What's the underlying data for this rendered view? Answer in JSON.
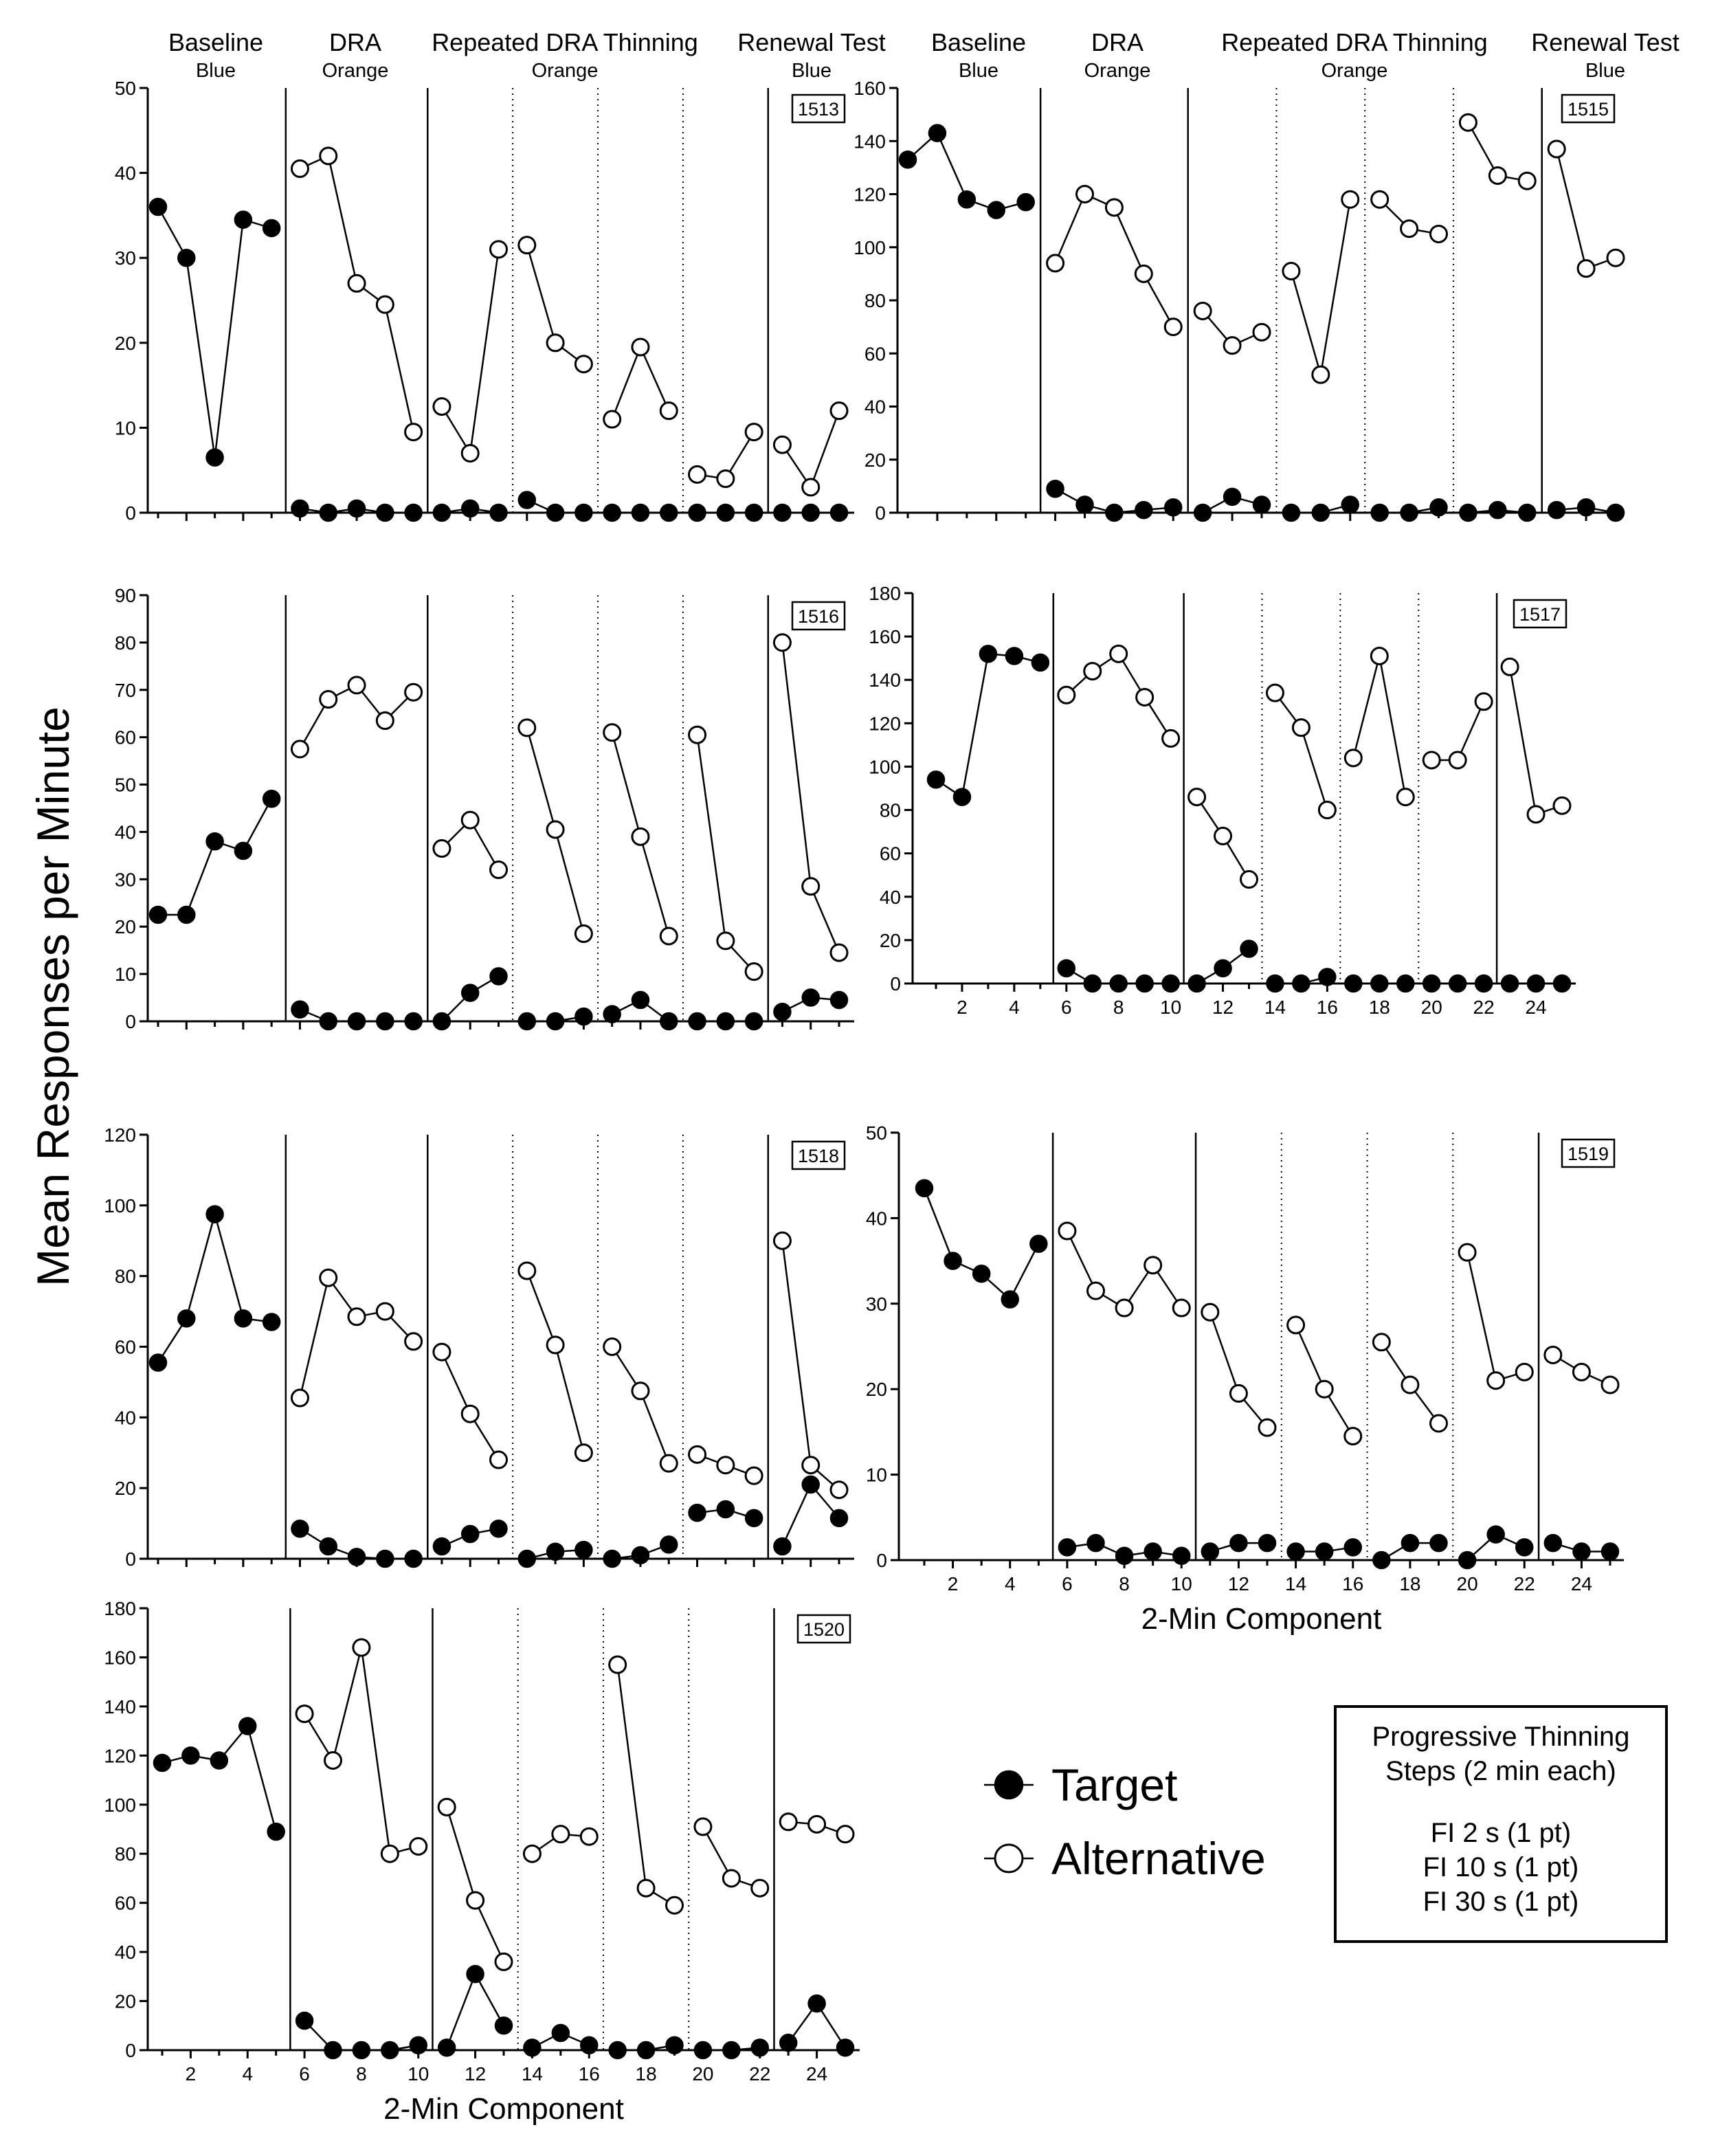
{
  "figure": {
    "ylabel": "Mean Responses per Minute",
    "xlabel": "2-Min Component",
    "phase_headers": [
      {
        "title": "Baseline",
        "color": "Blue"
      },
      {
        "title": "DRA",
        "color": "Orange"
      },
      {
        "title": "Repeated DRA Thinning",
        "color": "Orange"
      },
      {
        "title": "Renewal Test",
        "color": "Blue"
      }
    ]
  },
  "legend": {
    "target": "Target",
    "alternative": "Alternative",
    "thinning_box": [
      "Progressive Thinning",
      "Steps (2 min each)",
      "",
      "FI 2 s (1 pt)",
      "FI 10 s (1 pt)",
      "FI 30 s (1 pt)"
    ]
  },
  "chart_data": [
    {
      "type": "line",
      "id": "1513",
      "x": [
        1,
        2,
        3,
        4,
        5,
        6,
        7,
        8,
        9,
        10,
        11,
        12,
        13,
        14,
        15,
        16,
        17,
        18,
        19,
        20,
        21,
        22,
        23,
        24,
        25
      ],
      "ylim": [
        0,
        50
      ],
      "yticks": [
        0,
        10,
        20,
        30,
        40,
        50
      ],
      "xticks": [],
      "xlabel": "",
      "phase_lines": [
        {
          "x": 5.5,
          "style": "solid"
        },
        {
          "x": 10.5,
          "style": "solid"
        },
        {
          "x": 13.5,
          "style": "dotted"
        },
        {
          "x": 16.5,
          "style": "dotted"
        },
        {
          "x": 19.5,
          "style": "dotted"
        },
        {
          "x": 22.5,
          "style": "solid"
        }
      ],
      "series": [
        {
          "name": "Target",
          "values": [
            36,
            30,
            6.5,
            34.5,
            33.5,
            0.5,
            0,
            0.5,
            0,
            0,
            0,
            0.5,
            0,
            1.5,
            0,
            0,
            0,
            0,
            0,
            0,
            0,
            0,
            0,
            0,
            0
          ]
        },
        {
          "name": "Alternative",
          "values": [
            null,
            null,
            null,
            null,
            null,
            40.5,
            42,
            27,
            24.5,
            9.5,
            12.5,
            7,
            31,
            31.5,
            20,
            17.5,
            11,
            19.5,
            12,
            4.5,
            4,
            9.5,
            8,
            3,
            12
          ]
        }
      ]
    },
    {
      "type": "line",
      "id": "1515",
      "x": [
        1,
        2,
        3,
        4,
        5,
        6,
        7,
        8,
        9,
        10,
        11,
        12,
        13,
        14,
        15,
        16,
        17,
        18,
        19,
        20,
        21,
        22,
        23,
        24,
        25
      ],
      "ylim": [
        0,
        160
      ],
      "yticks": [
        0,
        20,
        40,
        60,
        80,
        100,
        120,
        140,
        160
      ],
      "xticks": [],
      "xlabel": "",
      "phase_lines": [
        {
          "x": 5.5,
          "style": "solid"
        },
        {
          "x": 10.5,
          "style": "solid"
        },
        {
          "x": 13.5,
          "style": "dotted"
        },
        {
          "x": 16.5,
          "style": "dotted"
        },
        {
          "x": 19.5,
          "style": "dotted"
        },
        {
          "x": 22.5,
          "style": "solid"
        }
      ],
      "series": [
        {
          "name": "Target",
          "values": [
            133,
            143,
            118,
            114,
            117,
            9,
            3,
            0,
            1,
            2,
            0,
            6,
            3,
            0,
            0,
            3,
            0,
            0,
            2,
            0,
            1,
            0,
            1,
            2,
            0
          ]
        },
        {
          "name": "Alternative",
          "values": [
            null,
            null,
            null,
            null,
            null,
            94,
            120,
            115,
            90,
            70,
            76,
            63,
            68,
            91,
            52,
            118,
            118,
            107,
            105,
            147,
            127,
            125,
            137,
            92,
            96
          ]
        }
      ]
    },
    {
      "type": "line",
      "id": "1516",
      "x": [
        1,
        2,
        3,
        4,
        5,
        6,
        7,
        8,
        9,
        10,
        11,
        12,
        13,
        14,
        15,
        16,
        17,
        18,
        19,
        20,
        21,
        22,
        23,
        24,
        25
      ],
      "ylim": [
        0,
        90
      ],
      "yticks": [
        0,
        10,
        20,
        30,
        40,
        50,
        60,
        70,
        80,
        90
      ],
      "xticks": [],
      "xlabel": "",
      "phase_lines": [
        {
          "x": 5.5,
          "style": "solid"
        },
        {
          "x": 10.5,
          "style": "solid"
        },
        {
          "x": 13.5,
          "style": "dotted"
        },
        {
          "x": 16.5,
          "style": "dotted"
        },
        {
          "x": 19.5,
          "style": "dotted"
        },
        {
          "x": 22.5,
          "style": "solid"
        }
      ],
      "series": [
        {
          "name": "Target",
          "values": [
            22.5,
            22.5,
            38,
            36,
            47,
            2.5,
            0,
            0,
            0,
            0,
            0,
            6,
            9.5,
            0,
            0,
            1,
            1.5,
            4.5,
            0,
            0,
            0,
            0,
            2,
            5,
            4.5
          ]
        },
        {
          "name": "Alternative",
          "values": [
            null,
            null,
            null,
            null,
            null,
            57.5,
            68,
            71,
            63.5,
            69.5,
            36.5,
            42.5,
            32,
            62,
            40.5,
            18.5,
            61,
            39,
            18,
            60.5,
            17,
            10.5,
            80,
            28.5,
            14.5
          ]
        }
      ]
    },
    {
      "type": "line",
      "id": "1517",
      "x": [
        1,
        2,
        3,
        4,
        5,
        6,
        7,
        8,
        9,
        10,
        11,
        12,
        13,
        14,
        15,
        16,
        17,
        18,
        19,
        20,
        21,
        22,
        23,
        24,
        25
      ],
      "ylim": [
        0,
        180
      ],
      "yticks": [
        0,
        20,
        40,
        60,
        80,
        100,
        120,
        140,
        160,
        180
      ],
      "xticks": [
        2,
        4,
        6,
        8,
        10,
        12,
        14,
        16,
        18,
        20,
        22,
        24
      ],
      "xlabel": "",
      "phase_lines": [
        {
          "x": 5.5,
          "style": "solid"
        },
        {
          "x": 10.5,
          "style": "solid"
        },
        {
          "x": 13.5,
          "style": "dotted"
        },
        {
          "x": 16.5,
          "style": "dotted"
        },
        {
          "x": 19.5,
          "style": "dotted"
        },
        {
          "x": 22.5,
          "style": "solid"
        }
      ],
      "series": [
        {
          "name": "Target",
          "values": [
            94,
            86,
            152,
            151,
            148,
            7,
            0,
            0,
            0,
            0,
            0,
            7,
            16,
            0,
            0,
            3,
            0,
            0,
            0,
            0,
            0,
            0,
            0,
            0,
            0
          ]
        },
        {
          "name": "Alternative",
          "values": [
            null,
            null,
            null,
            null,
            null,
            133,
            144,
            152,
            132,
            113,
            86,
            68,
            48,
            134,
            118,
            80,
            104,
            151,
            86,
            103,
            103,
            130,
            146,
            78,
            82
          ]
        }
      ]
    },
    {
      "type": "line",
      "id": "1518",
      "x": [
        1,
        2,
        3,
        4,
        5,
        6,
        7,
        8,
        9,
        10,
        11,
        12,
        13,
        14,
        15,
        16,
        17,
        18,
        19,
        20,
        21,
        22,
        23,
        24,
        25
      ],
      "ylim": [
        0,
        120
      ],
      "yticks": [
        0,
        20,
        40,
        60,
        80,
        100,
        120
      ],
      "xticks": [],
      "xlabel": "",
      "phase_lines": [
        {
          "x": 5.5,
          "style": "solid"
        },
        {
          "x": 10.5,
          "style": "solid"
        },
        {
          "x": 13.5,
          "style": "dotted"
        },
        {
          "x": 16.5,
          "style": "dotted"
        },
        {
          "x": 19.5,
          "style": "dotted"
        },
        {
          "x": 22.5,
          "style": "solid"
        }
      ],
      "series": [
        {
          "name": "Target",
          "values": [
            55.5,
            68,
            97.5,
            68,
            67,
            8.5,
            3.5,
            0.5,
            0,
            0,
            3.5,
            7,
            8.5,
            0,
            2,
            2.5,
            0,
            1,
            4,
            13,
            14,
            11.5,
            3.5,
            21,
            11.5
          ]
        },
        {
          "name": "Alternative",
          "values": [
            null,
            null,
            null,
            null,
            null,
            45.5,
            79.5,
            68.5,
            70,
            61.5,
            58.5,
            41,
            28,
            81.5,
            60.5,
            30,
            60,
            47.5,
            27,
            29.5,
            26.5,
            23.5,
            90,
            26.5,
            19.5
          ]
        }
      ]
    },
    {
      "type": "line",
      "id": "1519",
      "x": [
        1,
        2,
        3,
        4,
        5,
        6,
        7,
        8,
        9,
        10,
        11,
        12,
        13,
        14,
        15,
        16,
        17,
        18,
        19,
        20,
        21,
        22,
        23,
        24,
        25
      ],
      "ylim": [
        0,
        50
      ],
      "yticks": [
        0,
        10,
        20,
        30,
        40,
        50
      ],
      "xticks": [
        2,
        4,
        6,
        8,
        10,
        12,
        14,
        16,
        18,
        20,
        22,
        24
      ],
      "xlabel": "2-Min Component",
      "phase_lines": [
        {
          "x": 5.5,
          "style": "solid"
        },
        {
          "x": 10.5,
          "style": "solid"
        },
        {
          "x": 13.5,
          "style": "dotted"
        },
        {
          "x": 16.5,
          "style": "dotted"
        },
        {
          "x": 19.5,
          "style": "dotted"
        },
        {
          "x": 22.5,
          "style": "solid"
        }
      ],
      "series": [
        {
          "name": "Target",
          "values": [
            43.5,
            35,
            33.5,
            30.5,
            37,
            1.5,
            2,
            0.5,
            1,
            0.5,
            1,
            2,
            2,
            1,
            1,
            1.5,
            0,
            2,
            2,
            0,
            3,
            1.5,
            2,
            1,
            1
          ]
        },
        {
          "name": "Alternative",
          "values": [
            null,
            null,
            null,
            null,
            null,
            38.5,
            31.5,
            29.5,
            34.5,
            29.5,
            29,
            19.5,
            15.5,
            27.5,
            20,
            14.5,
            25.5,
            20.5,
            16,
            36,
            21,
            22,
            24,
            22,
            20.5
          ]
        }
      ]
    },
    {
      "type": "line",
      "id": "1520",
      "x": [
        1,
        2,
        3,
        4,
        5,
        6,
        7,
        8,
        9,
        10,
        11,
        12,
        13,
        14,
        15,
        16,
        17,
        18,
        19,
        20,
        21,
        22,
        23,
        24,
        25
      ],
      "ylim": [
        0,
        180
      ],
      "yticks": [
        0,
        20,
        40,
        60,
        80,
        100,
        120,
        140,
        160,
        180
      ],
      "xticks": [
        2,
        4,
        6,
        8,
        10,
        12,
        14,
        16,
        18,
        20,
        22,
        24
      ],
      "xlabel": "2-Min Component",
      "phase_lines": [
        {
          "x": 5.5,
          "style": "solid"
        },
        {
          "x": 10.5,
          "style": "solid"
        },
        {
          "x": 13.5,
          "style": "dotted"
        },
        {
          "x": 16.5,
          "style": "dotted"
        },
        {
          "x": 19.5,
          "style": "dotted"
        },
        {
          "x": 22.5,
          "style": "solid"
        }
      ],
      "series": [
        {
          "name": "Target",
          "values": [
            117,
            120,
            118,
            132,
            89,
            12,
            0,
            0,
            0,
            2,
            1,
            31,
            10,
            1,
            7,
            2,
            0,
            0,
            2,
            0,
            0,
            1,
            3,
            19,
            1
          ]
        },
        {
          "name": "Alternative",
          "values": [
            null,
            null,
            null,
            null,
            null,
            137,
            118,
            164,
            80,
            83,
            99,
            61,
            36,
            80,
            88,
            87,
            157,
            66,
            59,
            91,
            70,
            66,
            93,
            92,
            88
          ]
        }
      ]
    }
  ]
}
